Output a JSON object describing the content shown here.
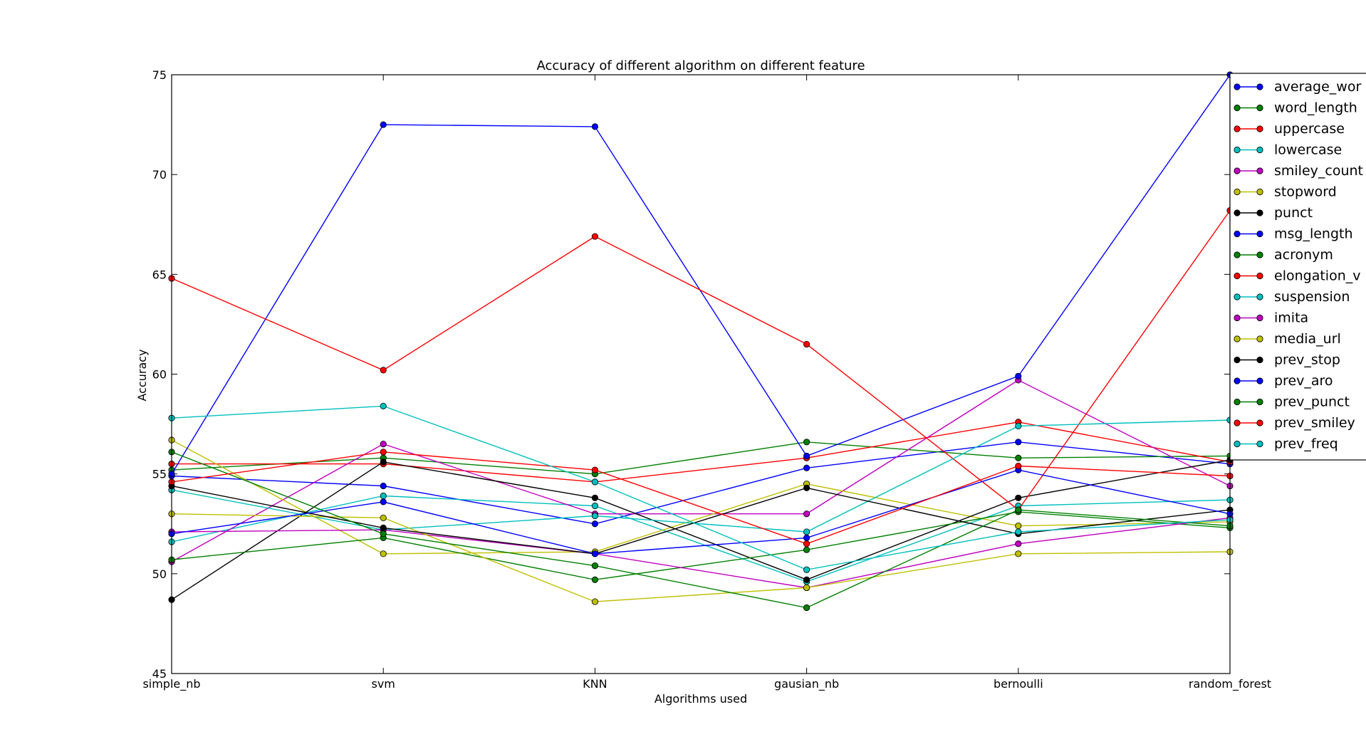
{
  "chart_data": {
    "type": "line",
    "title": "Accuracy of different algorithm on different feature",
    "xlabel": "Algorithms used",
    "ylabel": "Accuracy",
    "categories": [
      "simple_nb",
      "svm",
      "KNN",
      "gausian_nb",
      "bernoulli",
      "random_forest"
    ],
    "ylim": [
      45,
      75
    ],
    "yticks": [
      "45",
      "50",
      "55",
      "60",
      "65",
      "70",
      "75"
    ],
    "grid": false,
    "legend_position": "top-right",
    "series": [
      {
        "name": "average_wor",
        "color": "#0000ff",
        "values": [
          54.9,
          54.4,
          52.5,
          55.3,
          56.6,
          55.5
        ]
      },
      {
        "name": "word_length",
        "color": "#008000",
        "values": [
          55.2,
          55.8,
          55.0,
          56.6,
          55.8,
          55.9
        ]
      },
      {
        "name": "uppercase",
        "color": "#ff0000",
        "values": [
          55.5,
          55.5,
          54.6,
          55.8,
          57.6,
          55.6
        ]
      },
      {
        "name": "lowercase",
        "color": "#00bfbf",
        "values": [
          51.6,
          53.9,
          53.4,
          49.6,
          53.4,
          53.7
        ]
      },
      {
        "name": "smiley_count",
        "color": "#bf00bf",
        "values": [
          50.6,
          56.5,
          53.0,
          53.0,
          59.7,
          54.4
        ]
      },
      {
        "name": "stopword",
        "color": "#bfbf00",
        "values": [
          56.7,
          51.0,
          51.1,
          54.5,
          52.4,
          52.6
        ]
      },
      {
        "name": "punct",
        "color": "#000000",
        "values": [
          48.7,
          55.6,
          53.8,
          49.7,
          53.8,
          55.7
        ]
      },
      {
        "name": "msg_length",
        "color": "#0000ff",
        "values": [
          55.0,
          72.5,
          72.4,
          55.9,
          59.9,
          75.0
        ]
      },
      {
        "name": "acronym",
        "color": "#008000",
        "values": [
          50.7,
          51.8,
          49.7,
          51.2,
          53.1,
          52.3
        ]
      },
      {
        "name": "elongation_v",
        "color": "#ff0000",
        "values": [
          64.8,
          60.2,
          66.9,
          61.5,
          53.2,
          68.2
        ]
      },
      {
        "name": "suspension",
        "color": "#00bfbf",
        "values": [
          54.2,
          52.2,
          52.9,
          52.1,
          57.4,
          57.7
        ]
      },
      {
        "name": "imita",
        "color": "#bf00bf",
        "values": [
          52.1,
          52.2,
          51.0,
          49.3,
          51.5,
          52.8
        ]
      },
      {
        "name": "media_url",
        "color": "#bfbf00",
        "values": [
          53.0,
          52.8,
          48.6,
          49.3,
          51.0,
          51.1
        ]
      },
      {
        "name": "prev_stop",
        "color": "#000000",
        "values": [
          54.4,
          52.3,
          51.0,
          54.3,
          52.0,
          53.2
        ]
      },
      {
        "name": "prev_aro",
        "color": "#0000ff",
        "values": [
          52.0,
          53.6,
          51.0,
          51.8,
          55.2,
          53.0
        ]
      },
      {
        "name": "prev_punct",
        "color": "#008000",
        "values": [
          56.1,
          52.0,
          50.4,
          48.3,
          53.2,
          52.4
        ]
      },
      {
        "name": "prev_smiley",
        "color": "#ff0000",
        "values": [
          54.6,
          56.1,
          55.2,
          51.5,
          55.4,
          54.9
        ]
      },
      {
        "name": "prev_freq",
        "color": "#00bfbf",
        "values": [
          57.8,
          58.4,
          54.6,
          50.2,
          52.1,
          52.7
        ]
      }
    ]
  }
}
